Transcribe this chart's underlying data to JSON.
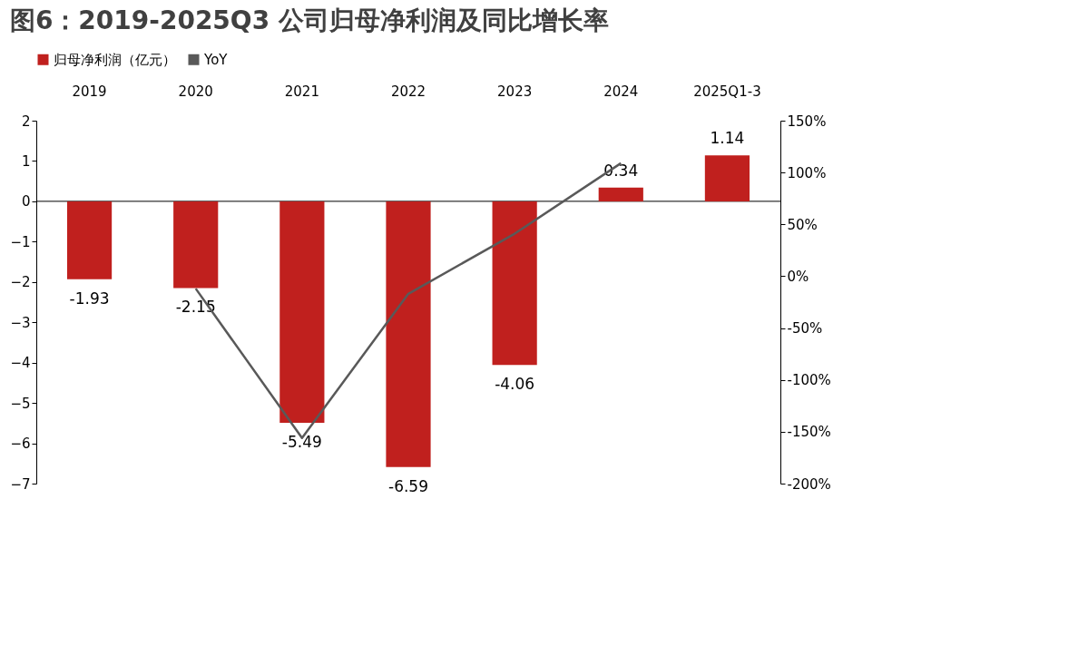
{
  "chart_data": {
    "type": "bar",
    "title": "图6：2019-2025Q3 公司归母净利润及同比增长率",
    "categories": [
      "2019",
      "2020",
      "2021",
      "2022",
      "2023",
      "2024",
      "2025Q1-3"
    ],
    "series": [
      {
        "name": "归母净利润（亿元）",
        "color": "#c0201e",
        "values": [
          -1.93,
          -2.15,
          -5.49,
          -6.59,
          -4.06,
          0.34,
          1.14
        ],
        "value_labels": [
          "-1.93",
          "-2.15",
          "-5.49",
          "-6.59",
          "-4.06",
          "0.34",
          "1.14"
        ]
      },
      {
        "name": "YoY",
        "type": "line",
        "axis": "y2",
        "color": "#595959",
        "values": [
          null,
          -12,
          -156,
          -17,
          41,
          109,
          null
        ]
      }
    ],
    "ylim": [
      -7,
      2
    ],
    "yticks": [
      -7,
      -6,
      -5,
      -4,
      -3,
      -2,
      -1,
      0,
      1,
      2
    ],
    "y2lim": [
      -200,
      150
    ],
    "y2ticks": [
      {
        "value": -200,
        "label": "-200%"
      },
      {
        "value": -150,
        "label": "-150%"
      },
      {
        "value": -100,
        "label": "-100%"
      },
      {
        "value": -50,
        "label": "-50%"
      },
      {
        "value": 0,
        "label": "0%"
      },
      {
        "value": 50,
        "label": "50%"
      },
      {
        "value": 100,
        "label": "100%"
      },
      {
        "value": 150,
        "label": "150%"
      }
    ],
    "legend": "top",
    "marker": "none",
    "line_style": "solid"
  }
}
